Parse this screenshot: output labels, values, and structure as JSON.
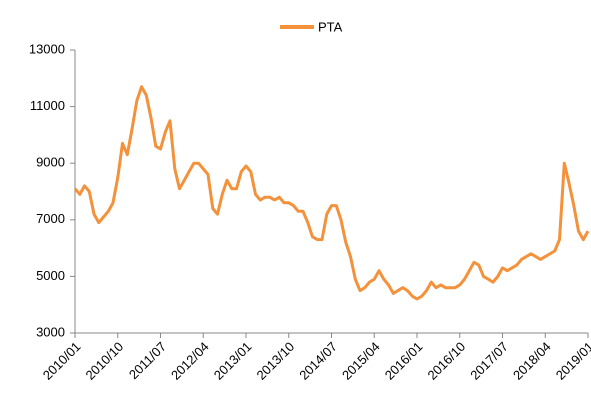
{
  "chart_data": {
    "type": "line",
    "categories": [
      "2010/01",
      null,
      null,
      null,
      null,
      null,
      null,
      null,
      null,
      "2010/10",
      null,
      null,
      null,
      null,
      null,
      null,
      null,
      null,
      "2011/07",
      null,
      null,
      null,
      null,
      null,
      null,
      null,
      null,
      "2012/04",
      null,
      null,
      null,
      null,
      null,
      null,
      null,
      null,
      "2013/01",
      null,
      null,
      null,
      null,
      null,
      null,
      null,
      null,
      "2013/10",
      null,
      null,
      null,
      null,
      null,
      null,
      null,
      null,
      "2014/07",
      null,
      null,
      null,
      null,
      null,
      null,
      null,
      null,
      "2015/04",
      null,
      null,
      null,
      null,
      null,
      null,
      null,
      null,
      "2016/01",
      null,
      null,
      null,
      null,
      null,
      null,
      null,
      null,
      "2016/10",
      null,
      null,
      null,
      null,
      null,
      null,
      null,
      null,
      "2017/07",
      null,
      null,
      null,
      null,
      null,
      null,
      null,
      null,
      "2018/04",
      null,
      null,
      null,
      null,
      null,
      null,
      null,
      null,
      "2019/01"
    ],
    "series": [
      {
        "name": "PTA",
        "color": "#f4913b",
        "values": [
          8100,
          7900,
          8200,
          8000,
          7200,
          6900,
          7100,
          7300,
          7600,
          8500,
          9700,
          9300,
          10200,
          11200,
          11700,
          11400,
          10600,
          9600,
          9500,
          10100,
          10500,
          8800,
          8100,
          8400,
          8700,
          9000,
          9000,
          8800,
          8600,
          7400,
          7200,
          7900,
          8400,
          8100,
          8100,
          8700,
          8900,
          8700,
          7900,
          7700,
          7800,
          7800,
          7700,
          7800,
          7600,
          7600,
          7500,
          7300,
          7300,
          6900,
          6400,
          6300,
          6300,
          7200,
          7500,
          7500,
          7000,
          6200,
          5700,
          4900,
          4500,
          4600,
          4800,
          4900,
          5200,
          4900,
          4700,
          4400,
          4500,
          4600,
          4500,
          4300,
          4200,
          4300,
          4500,
          4800,
          4600,
          4700,
          4600,
          4600,
          4600,
          4700,
          4900,
          5200,
          5500,
          5400,
          5000,
          4900,
          4800,
          5000,
          5300,
          5200,
          5300,
          5400,
          5600,
          5700,
          5800,
          5700,
          5600,
          5700,
          5800,
          5900,
          6300,
          9000,
          8300,
          7500,
          6600,
          6300,
          6600
        ]
      }
    ],
    "ylim": [
      3000,
      13000
    ],
    "yticks": [
      3000,
      5000,
      7000,
      9000,
      11000,
      13000
    ],
    "grid": false,
    "legend": "top"
  }
}
